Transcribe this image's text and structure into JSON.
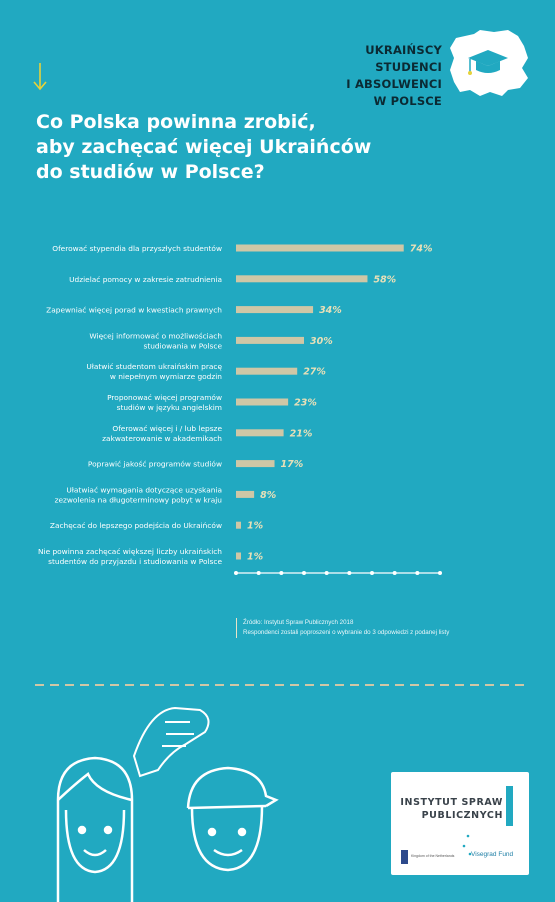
{
  "header": {
    "line1": "UKRAIŃSCY STUDENCI",
    "line2": "I ABSOLWENCI W POLSCE"
  },
  "title": {
    "line1": "Co Polska powinna zrobić,",
    "line2": "aby zachęcać więcej Ukraińców",
    "line3": "do studiów w Polsce?"
  },
  "colors": {
    "background": "#21a9c1",
    "bar": "#cfc7a6",
    "value": "#e8e0b8",
    "label": "#ffffff"
  },
  "chart_data": {
    "type": "bar",
    "orientation": "horizontal",
    "categories": [
      [
        "Oferować stypendia dla przyszłych studentów"
      ],
      [
        "Udzielać pomocy w zakresie zatrudnienia"
      ],
      [
        "Zapewniać więcej porad w kwestiach prawnych"
      ],
      [
        "Więcej informować o możliwościach",
        "studiowania w Polsce"
      ],
      [
        "Ułatwić studentom ukraińskim pracę",
        "w niepełnym wymiarze godzin"
      ],
      [
        "Proponować więcej programów",
        "studiów w języku angielskim"
      ],
      [
        "Oferować więcej i / lub lepsze",
        "zakwaterowanie w akademikach"
      ],
      [
        "Poprawić jakość programów studiów"
      ],
      [
        "Ułatwiać wymagania dotyczące uzyskania",
        "zezwolenia na długoterminowy pobyt w kraju"
      ],
      [
        "Zachęcać do lepszego podejścia do Ukraińców"
      ],
      [
        "Nie powinna zachęcać większej liczby ukraińskich",
        "studentów do przyjazdu i studiowania w Polsce"
      ]
    ],
    "values": [
      74,
      58,
      34,
      30,
      27,
      23,
      21,
      17,
      8,
      1,
      1
    ],
    "value_labels": [
      "74%",
      "58%",
      "34%",
      "30%",
      "27%",
      "23%",
      "21%",
      "17%",
      "8%",
      "1%",
      "1%"
    ],
    "xlim": [
      0,
      90
    ],
    "unit": "%"
  },
  "source": {
    "line1": "Źródło: Instytut Spraw Publicznych 2018",
    "line2": "Respondenci zostali poproszeni o wybranie do 3 odpowiedzi z podanej listy"
  },
  "logo": {
    "line1": "INSTYTUT SPRAW",
    "line2": "PUBLICZNYCH",
    "partner1": "Kingdom of the Netherlands",
    "partner2": "Visegrad Fund"
  }
}
